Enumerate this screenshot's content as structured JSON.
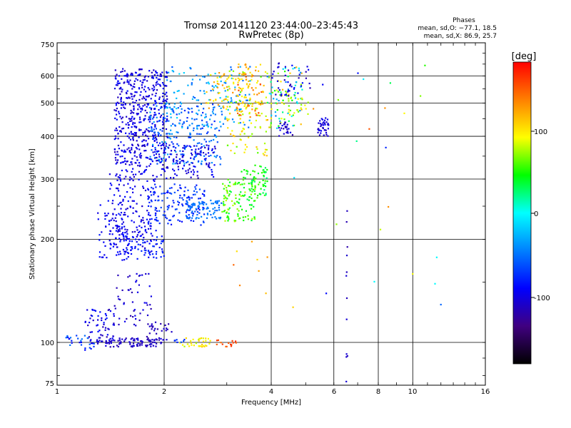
{
  "chart_data": {
    "type": "scatter",
    "title": "Tromsø 20141120 23:44:00–23:45:43",
    "subtitle": "RwPretec (8p)",
    "xlabel": "Frequency [MHz]",
    "ylabel": "Stationary phase Virtual Height [km]",
    "x_scale": "log",
    "y_scale": "log",
    "xlim": [
      1,
      16
    ],
    "ylim": [
      75,
      750
    ],
    "x_ticks": [
      1,
      2,
      4,
      6,
      8,
      10,
      16
    ],
    "x_tick_labels": [
      "1",
      "2",
      "4",
      "6",
      "8",
      "10",
      "16"
    ],
    "y_ticks": [
      75,
      100,
      200,
      300,
      400,
      500,
      600,
      750
    ],
    "y_tick_labels": [
      "75",
      "100",
      "200",
      "300",
      "400",
      "500",
      "600",
      "750"
    ],
    "grid": true,
    "legend_title": "Phases",
    "legend_lines": [
      "mean, sd,O: −77.1, 18.5",
      "mean, sd,X: 86.9, 25.7"
    ],
    "colorbar": {
      "label": "[deg]",
      "range": [
        -180,
        180
      ],
      "ticks": [
        100,
        0,
        -100
      ],
      "tick_labels": [
        "100",
        "0",
        "-100"
      ],
      "colors": [
        "#ff0000",
        "#ff8000",
        "#ffff00",
        "#00ff00",
        "#00ffff",
        "#0080ff",
        "#0000ff",
        "#400080",
        "#000000"
      ]
    },
    "clusters": [
      {
        "f": [
          1.45,
          2.05
        ],
        "h": [
          330,
          630
        ],
        "n": 480,
        "phase": [
          -115,
          -85
        ]
      },
      {
        "f": [
          1.8,
          2.9
        ],
        "h": [
          330,
          500
        ],
        "n": 220,
        "phase": [
          -80,
          -30
        ]
      },
      {
        "f": [
          1.9,
          2.8
        ],
        "h": [
          300,
          380
        ],
        "n": 120,
        "phase": [
          -115,
          -85
        ]
      },
      {
        "f": [
          2.0,
          3.5
        ],
        "h": [
          420,
          640
        ],
        "n": 130,
        "phase": [
          -60,
          -10
        ]
      },
      {
        "f": [
          2.6,
          3.5
        ],
        "h": [
          480,
          620
        ],
        "n": 60,
        "phase": [
          80,
          130
        ]
      },
      {
        "f": [
          3.0,
          3.9
        ],
        "h": [
          350,
          630
        ],
        "n": 120,
        "phase": [
          60,
          120
        ]
      },
      {
        "f": [
          3.2,
          3.8
        ],
        "h": [
          450,
          650
        ],
        "n": 60,
        "phase": [
          100,
          160
        ]
      },
      {
        "f": [
          3.9,
          4.9
        ],
        "h": [
          420,
          640
        ],
        "n": 90,
        "phase": [
          -50,
          120
        ]
      },
      {
        "f": [
          4.0,
          5.2
        ],
        "h": [
          520,
          660
        ],
        "n": 40,
        "phase": [
          -120,
          -80
        ]
      },
      {
        "f": [
          4.2,
          4.6
        ],
        "h": [
          400,
          440
        ],
        "n": 25,
        "phase": [
          -125,
          -95
        ]
      },
      {
        "f": [
          5.4,
          5.8
        ],
        "h": [
          400,
          460
        ],
        "n": 40,
        "phase": [
          -115,
          -90
        ]
      },
      {
        "f": [
          4.4,
          5.1
        ],
        "h": [
          460,
          520
        ],
        "n": 20,
        "phase": [
          60,
          110
        ]
      },
      {
        "f": [
          1.4,
          1.9
        ],
        "h": [
          180,
          330
        ],
        "n": 200,
        "phase": [
          -110,
          -85
        ]
      },
      {
        "f": [
          1.8,
          2.6
        ],
        "h": [
          220,
          290
        ],
        "n": 150,
        "phase": [
          -90,
          -60
        ]
      },
      {
        "f": [
          2.3,
          2.9
        ],
        "h": [
          230,
          260
        ],
        "n": 80,
        "phase": [
          -60,
          -40
        ]
      },
      {
        "f": [
          2.9,
          3.6
        ],
        "h": [
          225,
          300
        ],
        "n": 110,
        "phase": [
          30,
          80
        ]
      },
      {
        "f": [
          3.3,
          3.9
        ],
        "h": [
          260,
          330
        ],
        "n": 70,
        "phase": [
          20,
          60
        ]
      },
      {
        "f": [
          1.3,
          1.6
        ],
        "h": [
          170,
          260
        ],
        "n": 70,
        "phase": [
          -105,
          -80
        ]
      },
      {
        "f": [
          1.55,
          2.0
        ],
        "h": [
          175,
          205
        ],
        "n": 50,
        "phase": [
          -95,
          -70
        ]
      },
      {
        "f": [
          1.45,
          1.85
        ],
        "h": [
          110,
          160
        ],
        "n": 50,
        "phase": [
          -120,
          -95
        ]
      },
      {
        "f": [
          1.2,
          1.45
        ],
        "h": [
          100,
          125
        ],
        "n": 60,
        "phase": [
          -120,
          -80
        ]
      },
      {
        "f": [
          1.05,
          1.3
        ],
        "h": [
          95,
          105
        ],
        "n": 30,
        "phase": [
          -100,
          -40
        ]
      },
      {
        "f": [
          1.3,
          2.0
        ],
        "h": [
          97,
          103
        ],
        "n": 90,
        "phase": [
          -120,
          -100
        ]
      },
      {
        "f": [
          1.75,
          2.1
        ],
        "h": [
          100,
          115
        ],
        "n": 30,
        "phase": [
          -120,
          -105
        ]
      },
      {
        "f": [
          2.2,
          2.7
        ],
        "h": [
          97,
          103
        ],
        "n": 35,
        "phase": [
          70,
          110
        ]
      },
      {
        "f": [
          2.8,
          3.2
        ],
        "h": [
          97,
          103
        ],
        "n": 15,
        "phase": [
          140,
          170
        ]
      },
      {
        "f": [
          2.1,
          2.3
        ],
        "h": [
          100,
          103
        ],
        "n": 8,
        "phase": [
          -80,
          -60
        ]
      },
      {
        "f": [
          6.5,
          6.55
        ],
        "h": [
          75,
          290
        ],
        "n": 12,
        "phase": [
          -120,
          -100
        ]
      },
      {
        "f": [
          4.6,
          13.0
        ],
        "h": [
          120,
          650
        ],
        "n": 25,
        "phase": [
          -100,
          160
        ]
      },
      {
        "f": [
          3.0,
          3.9
        ],
        "h": [
          110,
          200
        ],
        "n": 8,
        "phase": [
          100,
          160
        ]
      }
    ]
  }
}
